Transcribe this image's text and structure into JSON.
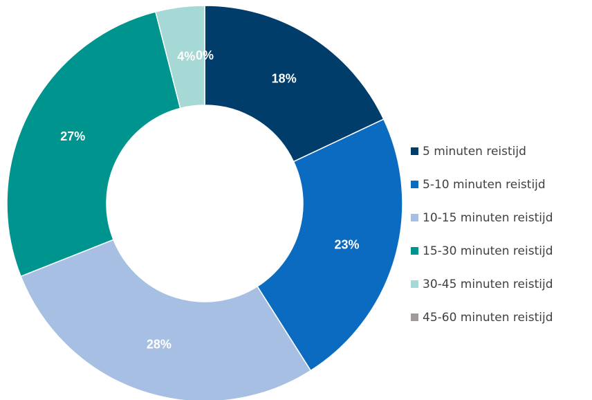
{
  "chart_data": {
    "type": "pie",
    "donut": true,
    "title": "",
    "categories": [
      "5 minuten reistijd",
      "5-10 minuten reistijd",
      "10-15 minuten reistijd",
      "15-30 minuten reistijd",
      "30-45 minuten reistijd",
      "45-60 minuten reistijd"
    ],
    "values": [
      18,
      23,
      28,
      27,
      4,
      0
    ],
    "data_labels": [
      "18%",
      "23%",
      "28%",
      "27%",
      "4%",
      "0%"
    ],
    "colors": [
      "#003D6A",
      "#0A6BC1",
      "#A7BFE3",
      "#00948F",
      "#A6D9D6",
      "#A09A99"
    ],
    "legend_position": "right"
  }
}
